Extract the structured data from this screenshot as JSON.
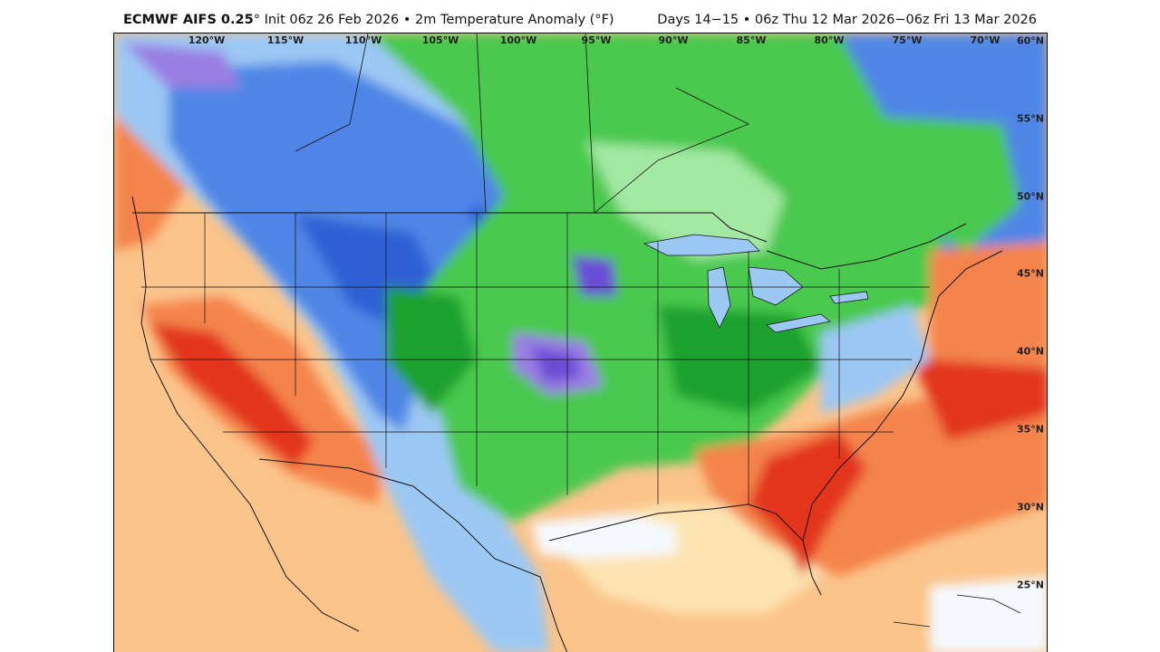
{
  "header": {
    "model": "ECMWF AIFS 0.25",
    "degree": "°",
    "init_text": " Init 06z 26 Feb 2026 • 2m Temperature Anomaly (°F)",
    "valid_text": "Days 14−15 • 06z Thu 12 Mar 2026−06z Fri 13 Mar 2026"
  },
  "map": {
    "longitude_labels": [
      "120°W",
      "115°W",
      "110°W",
      "105°W",
      "100°W",
      "95°W",
      "90°W",
      "85°W",
      "80°W",
      "75°W",
      "70°W"
    ],
    "latitude_labels": [
      "60°N",
      "55°N",
      "50°N",
      "45°N",
      "40°N",
      "35°N",
      "30°N",
      "25°N"
    ],
    "anomaly_colors": {
      "very_warm": "#e2351e",
      "warm": "#f4844c",
      "mild": "#fbc48a",
      "slight_warm": "#fde4b2",
      "near_normal": "#f5f9ff",
      "slight_cool": "#9cc8f4",
      "cool": "#4f86e6",
      "cold": "#2f61d4",
      "green_light": "#a3e8a3",
      "green": "#49c94d",
      "green_dark": "#1fa12f",
      "very_cold": "#9a7ee3",
      "extreme_cold": "#6a4ed6"
    }
  }
}
